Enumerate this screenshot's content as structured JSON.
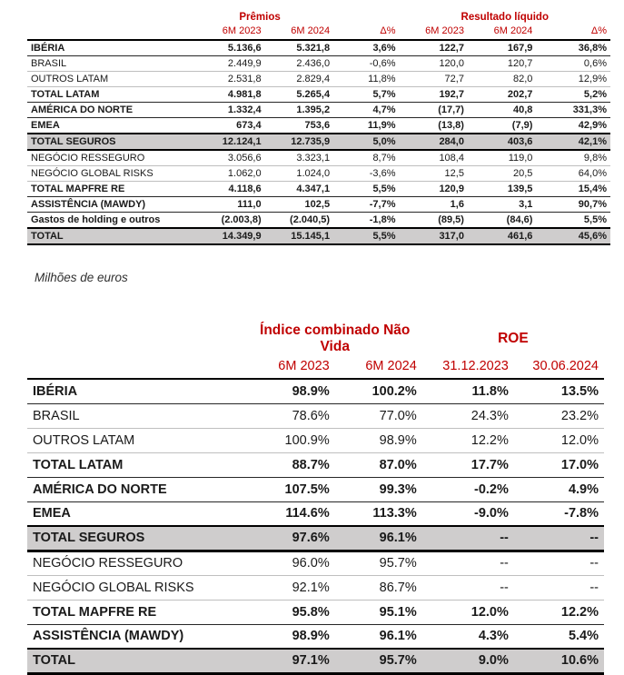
{
  "note": "Milhões de euros",
  "colors": {
    "accent_red": "#C00000",
    "shaded_row": "#CFCDCD",
    "border_dark": "#000000",
    "border_light": "#BFBFBF"
  },
  "table1": {
    "group_headers": [
      "Prêmios",
      "Resultado líquido"
    ],
    "col_headers": [
      "6M 2023",
      "6M 2024",
      "Δ%",
      "6M 2023",
      "6M 2024",
      "Δ%"
    ],
    "rows": [
      {
        "label": "IBÉRIA",
        "values": [
          "5.136,6",
          "5.321,8",
          "3,6%",
          "122,7",
          "167,9",
          "36,8%"
        ],
        "bold": true,
        "shaded": false
      },
      {
        "label": "BRASIL",
        "values": [
          "2.449,9",
          "2.436,0",
          "-0,6%",
          "120,0",
          "120,7",
          "0,6%"
        ],
        "bold": false,
        "shaded": false
      },
      {
        "label": "OUTROS LATAM",
        "values": [
          "2.531,8",
          "2.829,4",
          "11,8%",
          "72,7",
          "82,0",
          "12,9%"
        ],
        "bold": false,
        "shaded": false
      },
      {
        "label": "TOTAL LATAM",
        "values": [
          "4.981,8",
          "5.265,4",
          "5,7%",
          "192,7",
          "202,7",
          "5,2%"
        ],
        "bold": true,
        "shaded": false
      },
      {
        "label": "AMÉRICA DO NORTE",
        "values": [
          "1.332,4",
          "1.395,2",
          "4,7%",
          "(17,7)",
          "40,8",
          "331,3%"
        ],
        "bold": true,
        "shaded": false
      },
      {
        "label": "EMEA",
        "values": [
          "673,4",
          "753,6",
          "11,9%",
          "(13,8)",
          "(7,9)",
          "42,9%"
        ],
        "bold": true,
        "shaded": false
      },
      {
        "label": "TOTAL SEGUROS",
        "values": [
          "12.124,1",
          "12.735,9",
          "5,0%",
          "284,0",
          "403,6",
          "42,1%"
        ],
        "bold": true,
        "shaded": true
      },
      {
        "label": "NEGÓCIO RESSEGURO",
        "values": [
          "3.056,6",
          "3.323,1",
          "8,7%",
          "108,4",
          "119,0",
          "9,8%"
        ],
        "bold": false,
        "shaded": false
      },
      {
        "label": "NEGÓCIO GLOBAL RISKS",
        "values": [
          "1.062,0",
          "1.024,0",
          "-3,6%",
          "12,5",
          "20,5",
          "64,0%"
        ],
        "bold": false,
        "shaded": false
      },
      {
        "label": "TOTAL MAPFRE RE",
        "values": [
          "4.118,6",
          "4.347,1",
          "5,5%",
          "120,9",
          "139,5",
          "15,4%"
        ],
        "bold": true,
        "shaded": false
      },
      {
        "label": "ASSISTÊNCIA (MAWDY)",
        "values": [
          "111,0",
          "102,5",
          "-7,7%",
          "1,6",
          "3,1",
          "90,7%"
        ],
        "bold": true,
        "shaded": false
      },
      {
        "label": "Gastos de holding e outros",
        "values": [
          "(2.003,8)",
          "(2.040,5)",
          "-1,8%",
          "(89,5)",
          "(84,6)",
          "5,5%"
        ],
        "bold": true,
        "shaded": false
      },
      {
        "label": "TOTAL",
        "values": [
          "14.349,9",
          "15.145,1",
          "5,5%",
          "317,0",
          "461,6",
          "45,6%"
        ],
        "bold": true,
        "shaded": true
      }
    ]
  },
  "table2": {
    "group_headers": [
      "Índice combinado Não Vida",
      "ROE"
    ],
    "col_headers": [
      "6M 2023",
      "6M 2024",
      "31.12.2023",
      "30.06.2024"
    ],
    "rows": [
      {
        "label": "IBÉRIA",
        "values": [
          "98.9%",
          "100.2%",
          "11.8%",
          "13.5%"
        ],
        "bold": true,
        "shaded": false
      },
      {
        "label": "BRASIL",
        "values": [
          "78.6%",
          "77.0%",
          "24.3%",
          "23.2%"
        ],
        "bold": false,
        "shaded": false
      },
      {
        "label": "OUTROS LATAM",
        "values": [
          "100.9%",
          "98.9%",
          "12.2%",
          "12.0%"
        ],
        "bold": false,
        "shaded": false
      },
      {
        "label": "TOTAL LATAM",
        "values": [
          "88.7%",
          "87.0%",
          "17.7%",
          "17.0%"
        ],
        "bold": true,
        "shaded": false
      },
      {
        "label": "AMÉRICA DO NORTE",
        "values": [
          "107.5%",
          "99.3%",
          "-0.2%",
          "4.9%"
        ],
        "bold": true,
        "shaded": false
      },
      {
        "label": "EMEA",
        "values": [
          "114.6%",
          "113.3%",
          "-9.0%",
          "-7.8%"
        ],
        "bold": true,
        "shaded": false
      },
      {
        "label": "TOTAL SEGUROS",
        "values": [
          "97.6%",
          "96.1%",
          "--",
          "--"
        ],
        "bold": true,
        "shaded": true
      },
      {
        "label": "NEGÓCIO RESSEGURO",
        "values": [
          "96.0%",
          "95.7%",
          "--",
          "--"
        ],
        "bold": false,
        "shaded": false
      },
      {
        "label": "NEGÓCIO GLOBAL RISKS",
        "values": [
          "92.1%",
          "86.7%",
          "--",
          "--"
        ],
        "bold": false,
        "shaded": false
      },
      {
        "label": "TOTAL MAPFRE RE",
        "values": [
          "95.8%",
          "95.1%",
          "12.0%",
          "12.2%"
        ],
        "bold": true,
        "shaded": false
      },
      {
        "label": "ASSISTÊNCIA (MAWDY)",
        "values": [
          "98.9%",
          "96.1%",
          "4.3%",
          "5.4%"
        ],
        "bold": true,
        "shaded": false
      },
      {
        "label": "TOTAL",
        "values": [
          "97.1%",
          "95.7%",
          "9.0%",
          "10.6%"
        ],
        "bold": true,
        "shaded": true
      }
    ]
  }
}
